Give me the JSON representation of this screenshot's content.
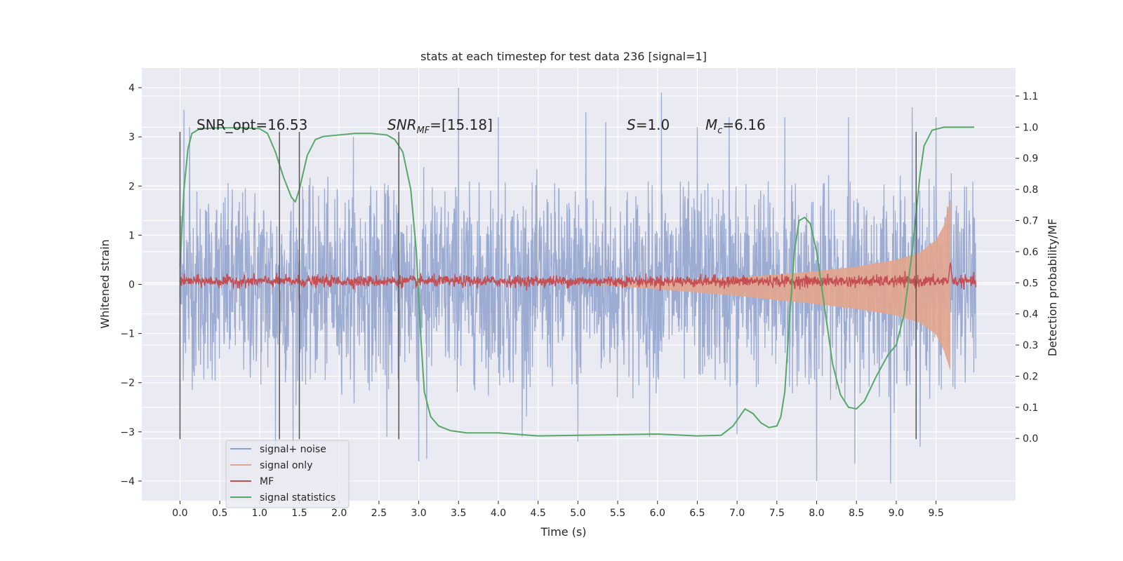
{
  "chart_data": {
    "type": "line",
    "title": "stats at each timestep for test data 236 [signal=1]",
    "xlabel": "Time (s)",
    "ylabel": "Whitened strain",
    "y2label": "Detection probability/MF",
    "xlim": [
      -0.48,
      10.5
    ],
    "ylim": [
      -4.4,
      4.4
    ],
    "y2lim": [
      -0.2,
      1.19
    ],
    "xticks": [
      0.0,
      0.5,
      1.0,
      1.5,
      2.0,
      2.5,
      3.0,
      3.5,
      4.0,
      4.5,
      5.0,
      5.5,
      6.0,
      6.5,
      7.0,
      7.5,
      8.0,
      8.5,
      9.0,
      9.5
    ],
    "xtick_labels": [
      "0.0",
      "0.5",
      "1.0",
      "1.5",
      "2.0",
      "2.5",
      "3.0",
      "3.5",
      "4.0",
      "4.5",
      "5.0",
      "5.5",
      "6.0",
      "6.5",
      "7.0",
      "7.5",
      "8.0",
      "8.5",
      "9.0",
      "9.5"
    ],
    "yticks": [
      -4,
      -3,
      -2,
      -1,
      0,
      1,
      2,
      3,
      4
    ],
    "ytick_labels": [
      "−4",
      "−3",
      "−2",
      "−1",
      "0",
      "1",
      "2",
      "3",
      "4"
    ],
    "y2ticks": [
      0.0,
      0.1,
      0.2,
      0.3,
      0.4,
      0.5,
      0.6,
      0.7,
      0.8,
      0.9,
      1.0,
      1.1
    ],
    "y2tick_labels": [
      "0.0",
      "0.1",
      "0.2",
      "0.3",
      "0.4",
      "0.5",
      "0.6",
      "0.7",
      "0.8",
      "0.9",
      "1.0",
      "1.1"
    ],
    "grid": true,
    "legend_placement": "lower-left",
    "annotations": {
      "snr_opt": "SNR_opt=16.53",
      "snr_mf_base": "SNR",
      "snr_mf_sub": "MF",
      "snr_mf_rest": "=[15.18]",
      "s": "=1.0",
      "s_symbol": "S",
      "mc_base": "M",
      "mc_sub": "c",
      "mc_rest": "=6.16"
    },
    "vertical_markers_x": [
      0.0,
      1.25,
      1.5,
      2.75,
      9.25
    ],
    "vertical_markers_range": [
      -3.15,
      3.1
    ],
    "series": [
      {
        "name": "signal+ noise",
        "color": "#8da0cb",
        "axis": "left",
        "x_range": [
          0.0,
          10.0
        ],
        "envelope_upper": [
          [
            0.0,
            1.8
          ],
          [
            2.5,
            1.9
          ],
          [
            5.0,
            1.9
          ],
          [
            7.5,
            2.0
          ],
          [
            10.0,
            2.0
          ]
        ],
        "envelope_lower": [
          [
            0.0,
            -1.9
          ],
          [
            2.5,
            -1.9
          ],
          [
            5.0,
            -2.0
          ],
          [
            7.5,
            -2.0
          ],
          [
            10.0,
            -2.0
          ]
        ],
        "peaks": [
          [
            0.05,
            3.55
          ],
          [
            0.12,
            3.2
          ],
          [
            1.2,
            -3.4
          ],
          [
            1.42,
            -3.45
          ],
          [
            2.18,
            3.0
          ],
          [
            2.6,
            -3.1
          ],
          [
            3.0,
            -3.6
          ],
          [
            3.1,
            -3.55
          ],
          [
            3.5,
            4.0
          ],
          [
            4.0,
            3.4
          ],
          [
            4.3,
            -3.1
          ],
          [
            5.1,
            3.5
          ],
          [
            5.0,
            -3.2
          ],
          [
            5.35,
            3.3
          ],
          [
            5.9,
            -3.1
          ],
          [
            6.05,
            3.9
          ],
          [
            6.5,
            3.2
          ],
          [
            6.9,
            3.4
          ],
          [
            7.0,
            -3.05
          ],
          [
            7.6,
            3.4
          ],
          [
            8.0,
            -4.0
          ],
          [
            8.48,
            -3.65
          ],
          [
            8.93,
            -4.05
          ],
          [
            8.4,
            3.4
          ],
          [
            9.2,
            3.6
          ],
          [
            9.3,
            -3.3
          ],
          [
            9.5,
            3.4
          ]
        ]
      },
      {
        "name": "signal only",
        "color": "#e3a58d",
        "axis": "left",
        "envelope_upper": [
          [
            5.2,
            0.0
          ],
          [
            6.0,
            0.05
          ],
          [
            7.0,
            0.14
          ],
          [
            7.5,
            0.2
          ],
          [
            8.0,
            0.27
          ],
          [
            8.5,
            0.36
          ],
          [
            9.0,
            0.5
          ],
          [
            9.3,
            0.65
          ],
          [
            9.5,
            0.9
          ],
          [
            9.6,
            1.2
          ],
          [
            9.68,
            1.72
          ]
        ],
        "envelope_lower": [
          [
            5.2,
            0.0
          ],
          [
            6.0,
            -0.1
          ],
          [
            7.0,
            -0.23
          ],
          [
            7.5,
            -0.32
          ],
          [
            8.0,
            -0.4
          ],
          [
            8.5,
            -0.5
          ],
          [
            9.0,
            -0.63
          ],
          [
            9.3,
            -0.78
          ],
          [
            9.5,
            -1.02
          ],
          [
            9.6,
            -1.35
          ],
          [
            9.68,
            -1.75
          ]
        ]
      },
      {
        "name": "MF",
        "color": "#c44e52",
        "axis": "right",
        "x_range": [
          0.0,
          10.0
        ],
        "baseline": 0.505,
        "amplitude": 0.015,
        "spike": [
          [
            9.65,
            0.5
          ],
          [
            9.68,
            0.565
          ],
          [
            9.71,
            0.5
          ]
        ]
      },
      {
        "name": "signal statistics",
        "color": "#55a868",
        "axis": "right",
        "points": [
          [
            0.0,
            0.55
          ],
          [
            0.05,
            0.8
          ],
          [
            0.1,
            0.93
          ],
          [
            0.15,
            0.98
          ],
          [
            0.25,
            0.995
          ],
          [
            0.5,
            0.998
          ],
          [
            0.8,
            0.998
          ],
          [
            1.0,
            0.995
          ],
          [
            1.1,
            0.98
          ],
          [
            1.2,
            0.92
          ],
          [
            1.3,
            0.84
          ],
          [
            1.4,
            0.775
          ],
          [
            1.45,
            0.76
          ],
          [
            1.5,
            0.8
          ],
          [
            1.6,
            0.91
          ],
          [
            1.7,
            0.96
          ],
          [
            1.8,
            0.97
          ],
          [
            2.0,
            0.975
          ],
          [
            2.2,
            0.98
          ],
          [
            2.4,
            0.98
          ],
          [
            2.6,
            0.975
          ],
          [
            2.7,
            0.96
          ],
          [
            2.8,
            0.92
          ],
          [
            2.9,
            0.8
          ],
          [
            2.97,
            0.6
          ],
          [
            3.02,
            0.35
          ],
          [
            3.07,
            0.15
          ],
          [
            3.15,
            0.07
          ],
          [
            3.25,
            0.04
          ],
          [
            3.4,
            0.025
          ],
          [
            3.6,
            0.018
          ],
          [
            4.0,
            0.018
          ],
          [
            4.5,
            0.008
          ],
          [
            5.0,
            0.01
          ],
          [
            5.5,
            0.012
          ],
          [
            6.0,
            0.014
          ],
          [
            6.5,
            0.008
          ],
          [
            6.8,
            0.01
          ],
          [
            6.95,
            0.04
          ],
          [
            7.1,
            0.095
          ],
          [
            7.2,
            0.08
          ],
          [
            7.3,
            0.05
          ],
          [
            7.4,
            0.035
          ],
          [
            7.5,
            0.04
          ],
          [
            7.55,
            0.07
          ],
          [
            7.6,
            0.15
          ],
          [
            7.65,
            0.35
          ],
          [
            7.72,
            0.6
          ],
          [
            7.78,
            0.7
          ],
          [
            7.85,
            0.71
          ],
          [
            7.92,
            0.69
          ],
          [
            8.0,
            0.6
          ],
          [
            8.1,
            0.42
          ],
          [
            8.2,
            0.24
          ],
          [
            8.3,
            0.14
          ],
          [
            8.4,
            0.1
          ],
          [
            8.5,
            0.095
          ],
          [
            8.6,
            0.12
          ],
          [
            8.75,
            0.2
          ],
          [
            8.9,
            0.27
          ],
          [
            9.0,
            0.3
          ],
          [
            9.1,
            0.4
          ],
          [
            9.2,
            0.6
          ],
          [
            9.3,
            0.85
          ],
          [
            9.35,
            0.94
          ],
          [
            9.45,
            0.99
          ],
          [
            9.6,
            1.0
          ],
          [
            9.8,
            1.0
          ],
          [
            9.98,
            1.0
          ]
        ]
      }
    ]
  }
}
